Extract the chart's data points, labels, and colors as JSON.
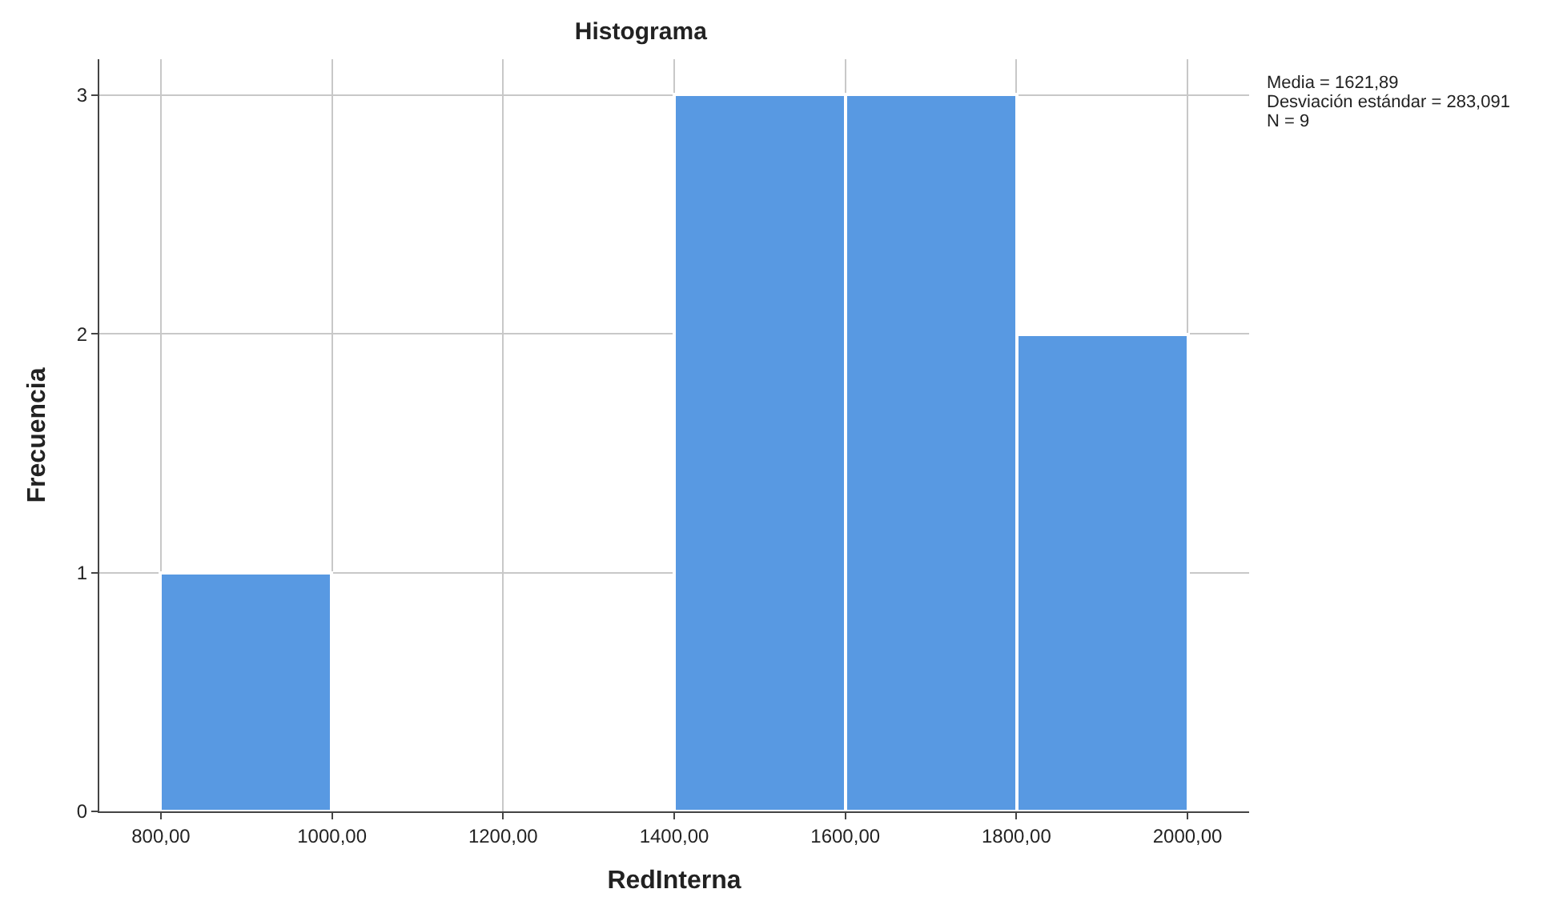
{
  "chart_data": {
    "type": "histogram",
    "title": "Histograma",
    "xlabel": "RedInterna",
    "ylabel": "Frecuencia",
    "bins": [
      800,
      1000,
      1200,
      1400,
      1600,
      1800,
      2000
    ],
    "values": [
      1,
      0,
      0,
      3,
      3,
      2
    ],
    "color": "#5899e2",
    "xlim": [
      728,
      2072
    ],
    "ylim": [
      0,
      3.15
    ],
    "xticks": [
      {
        "value": 800,
        "label": "800,00"
      },
      {
        "value": 1000,
        "label": "1000,00"
      },
      {
        "value": 1200,
        "label": "1200,00"
      },
      {
        "value": 1400,
        "label": "1400,00"
      },
      {
        "value": 1600,
        "label": "1600,00"
      },
      {
        "value": 1800,
        "label": "1800,00"
      },
      {
        "value": 2000,
        "label": "2000,00"
      }
    ],
    "yticks": [
      0,
      1,
      2,
      3
    ],
    "grid": true,
    "annotations": [
      "Media = 1621,89",
      "Desviación estándar = 283,091",
      "N = 9"
    ]
  }
}
